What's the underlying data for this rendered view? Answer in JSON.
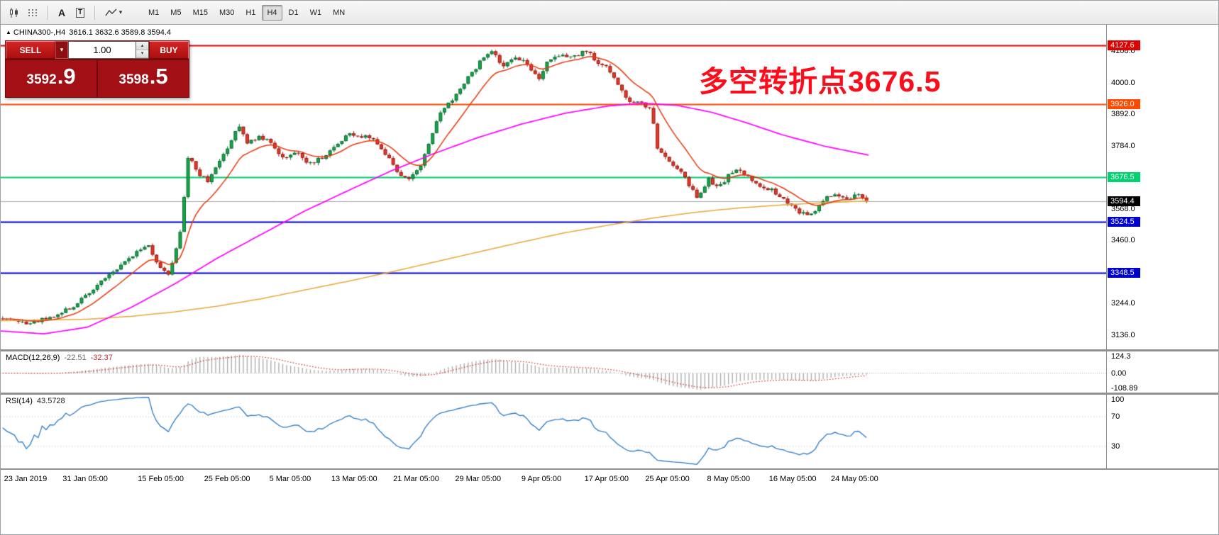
{
  "icons": {
    "caret_up": "▴",
    "caret_down": "▾"
  },
  "toolbar": {
    "text_tool": "A",
    "label_tool": "T",
    "timeframes": [
      {
        "label": "M1",
        "active": false
      },
      {
        "label": "M5",
        "active": false
      },
      {
        "label": "M15",
        "active": false
      },
      {
        "label": "M30",
        "active": false
      },
      {
        "label": "H1",
        "active": false
      },
      {
        "label": "H4",
        "active": true
      },
      {
        "label": "D1",
        "active": false
      },
      {
        "label": "W1",
        "active": false
      },
      {
        "label": "MN",
        "active": false
      }
    ]
  },
  "chart_header": {
    "marker": "▲",
    "symbol_period": "CHINA300-,H4",
    "ohlc_text": "3616.1 3632.6 3589.8 3594.4"
  },
  "trade_panel": {
    "sell_label": "SELL",
    "buy_label": "BUY",
    "volume": "1.00",
    "bid": "3592.9",
    "ask": "3598.5",
    "bid_int": "3592",
    "bid_frac": ".9",
    "ask_int": "3598",
    "ask_frac": ".5"
  },
  "annotation": {
    "text": "多空转折点3676.5",
    "color": "#fb0d1b"
  },
  "indicators": {
    "macd": {
      "label": "MACD(12,26,9)",
      "value_main": "-22.51",
      "value_signal": "-32.37",
      "axis": [
        "124.3",
        "0.00",
        "-108.89"
      ]
    },
    "rsi": {
      "label": "RSI(14)",
      "value": "43.5728",
      "axis": [
        "100",
        "70",
        "30"
      ],
      "levels": [
        70,
        30
      ]
    }
  },
  "chart_data": {
    "type": "candlestick",
    "symbol": "CHINA300-",
    "timeframe": "H4",
    "ohlc_current": {
      "open": 3616.1,
      "high": 3632.6,
      "low": 3589.8,
      "close": 3594.4
    },
    "ylim": [
      3087,
      4198
    ],
    "y_axis_labels": [
      "4108.0",
      "4000.0",
      "3892.0",
      "3784.0",
      "3568.0",
      "3460.0",
      "3244.0",
      "3136.0"
    ],
    "price_levels": [
      {
        "value": 4127.6,
        "label": "4127.6",
        "color": "#e00000",
        "width": 2
      },
      {
        "value": 3926.0,
        "label": "3926.0",
        "color": "#ff4800",
        "width": 2
      },
      {
        "value": 3676.5,
        "label": "3676.5",
        "color": "#00d26f",
        "width": 2
      },
      {
        "value": 3594.4,
        "label": "3594.4",
        "color": "#a8a8a8",
        "width": 1,
        "badge_bg": "#000000"
      },
      {
        "value": 3524.5,
        "label": "3524.5",
        "color": "#0000cc",
        "width": 2
      },
      {
        "value": 3348.5,
        "label": "3348.5",
        "color": "#0000cc",
        "width": 2
      }
    ],
    "colors": {
      "up": {
        "fill": "#17a44a",
        "border": "#0a6e31"
      },
      "down": {
        "fill": "#e3392b",
        "border": "#9a170e"
      }
    },
    "x_ticks": [
      {
        "label": "23 Jan 2019",
        "x": 0.003
      },
      {
        "label": "31 Jan 05:00",
        "x": 0.056
      },
      {
        "label": "15 Feb 05:00",
        "x": 0.124
      },
      {
        "label": "25 Feb 05:00",
        "x": 0.184
      },
      {
        "label": "5 Mar 05:00",
        "x": 0.243
      },
      {
        "label": "13 Mar 05:00",
        "x": 0.299
      },
      {
        "label": "21 Mar 05:00",
        "x": 0.355
      },
      {
        "label": "29 Mar 05:00",
        "x": 0.411
      },
      {
        "label": "9 Apr 05:00",
        "x": 0.471
      },
      {
        "label": "17 Apr 05:00",
        "x": 0.528
      },
      {
        "label": "25 Apr 05:00",
        "x": 0.583
      },
      {
        "label": "8 May 05:00",
        "x": 0.639
      },
      {
        "label": "16 May 05:00",
        "x": 0.695
      },
      {
        "label": "24 May 05:00",
        "x": 0.751
      }
    ],
    "candles": {
      "count": 220,
      "region": 0.785,
      "noise": 14,
      "seed": 1337,
      "last_close": 3594.4,
      "waypoints": [
        [
          0.0,
          3195
        ],
        [
          0.015,
          3185
        ],
        [
          0.033,
          3176
        ],
        [
          0.05,
          3196
        ],
        [
          0.065,
          3206
        ],
        [
          0.082,
          3236
        ],
        [
          0.107,
          3300
        ],
        [
          0.13,
          3356
        ],
        [
          0.152,
          3415
        ],
        [
          0.168,
          3446
        ],
        [
          0.18,
          3372
        ],
        [
          0.193,
          3346
        ],
        [
          0.205,
          3470
        ],
        [
          0.215,
          3756
        ],
        [
          0.226,
          3692
        ],
        [
          0.238,
          3662
        ],
        [
          0.25,
          3722
        ],
        [
          0.262,
          3790
        ],
        [
          0.273,
          3856
        ],
        [
          0.283,
          3796
        ],
        [
          0.296,
          3812
        ],
        [
          0.308,
          3800
        ],
        [
          0.324,
          3742
        ],
        [
          0.341,
          3762
        ],
        [
          0.353,
          3726
        ],
        [
          0.369,
          3738
        ],
        [
          0.386,
          3788
        ],
        [
          0.402,
          3830
        ],
        [
          0.415,
          3810
        ],
        [
          0.427,
          3816
        ],
        [
          0.443,
          3752
        ],
        [
          0.46,
          3686
        ],
        [
          0.472,
          3668
        ],
        [
          0.484,
          3720
        ],
        [
          0.498,
          3832
        ],
        [
          0.509,
          3906
        ],
        [
          0.525,
          3960
        ],
        [
          0.542,
          4030
        ],
        [
          0.558,
          4090
        ],
        [
          0.566,
          4112
        ],
        [
          0.579,
          4060
        ],
        [
          0.591,
          4086
        ],
        [
          0.607,
          4070
        ],
        [
          0.62,
          4010
        ],
        [
          0.632,
          4076
        ],
        [
          0.649,
          4090
        ],
        [
          0.665,
          4096
        ],
        [
          0.677,
          4112
        ],
        [
          0.69,
          4064
        ],
        [
          0.702,
          4046
        ],
        [
          0.714,
          3986
        ],
        [
          0.727,
          3926
        ],
        [
          0.739,
          3932
        ],
        [
          0.751,
          3902
        ],
        [
          0.758,
          3772
        ],
        [
          0.772,
          3726
        ],
        [
          0.784,
          3700
        ],
        [
          0.795,
          3646
        ],
        [
          0.805,
          3600
        ],
        [
          0.817,
          3668
        ],
        [
          0.829,
          3640
        ],
        [
          0.842,
          3690
        ],
        [
          0.854,
          3700
        ],
        [
          0.866,
          3670
        ],
        [
          0.878,
          3646
        ],
        [
          0.891,
          3630
        ],
        [
          0.903,
          3600
        ],
        [
          0.915,
          3570
        ],
        [
          0.928,
          3548
        ],
        [
          0.94,
          3560
        ],
        [
          0.952,
          3606
        ],
        [
          0.965,
          3622
        ],
        [
          0.977,
          3604
        ],
        [
          0.989,
          3616
        ],
        [
          1.0,
          3594.4
        ]
      ]
    },
    "moving_averages": {
      "fast": {
        "color": "#e8380d",
        "period": 12,
        "type": "ema_of_closes"
      },
      "slow": {
        "color": "#ff00ff",
        "points": [
          [
            0.0,
            3150
          ],
          [
            0.05,
            3140
          ],
          [
            0.1,
            3163
          ],
          [
            0.15,
            3230
          ],
          [
            0.2,
            3310
          ],
          [
            0.25,
            3400
          ],
          [
            0.3,
            3480
          ],
          [
            0.35,
            3560
          ],
          [
            0.4,
            3630
          ],
          [
            0.45,
            3698
          ],
          [
            0.5,
            3758
          ],
          [
            0.55,
            3812
          ],
          [
            0.6,
            3858
          ],
          [
            0.65,
            3895
          ],
          [
            0.7,
            3920
          ],
          [
            0.74,
            3930
          ],
          [
            0.78,
            3922
          ],
          [
            0.82,
            3898
          ],
          [
            0.86,
            3862
          ],
          [
            0.9,
            3822
          ],
          [
            0.95,
            3782
          ],
          [
            1.0,
            3752
          ]
        ]
      },
      "slowest": {
        "color": "#e8a838",
        "points": [
          [
            0.0,
            3185
          ],
          [
            0.1,
            3190
          ],
          [
            0.15,
            3200
          ],
          [
            0.2,
            3215
          ],
          [
            0.25,
            3235
          ],
          [
            0.3,
            3260
          ],
          [
            0.35,
            3290
          ],
          [
            0.4,
            3320
          ],
          [
            0.45,
            3352
          ],
          [
            0.5,
            3386
          ],
          [
            0.55,
            3420
          ],
          [
            0.6,
            3454
          ],
          [
            0.65,
            3486
          ],
          [
            0.7,
            3512
          ],
          [
            0.75,
            3536
          ],
          [
            0.8,
            3556
          ],
          [
            0.85,
            3571
          ],
          [
            0.9,
            3581
          ],
          [
            0.95,
            3589
          ],
          [
            1.0,
            3595
          ]
        ]
      }
    },
    "macd_params": {
      "fast": 12,
      "slow": 26,
      "signal": 9
    },
    "rsi_period": 14
  }
}
